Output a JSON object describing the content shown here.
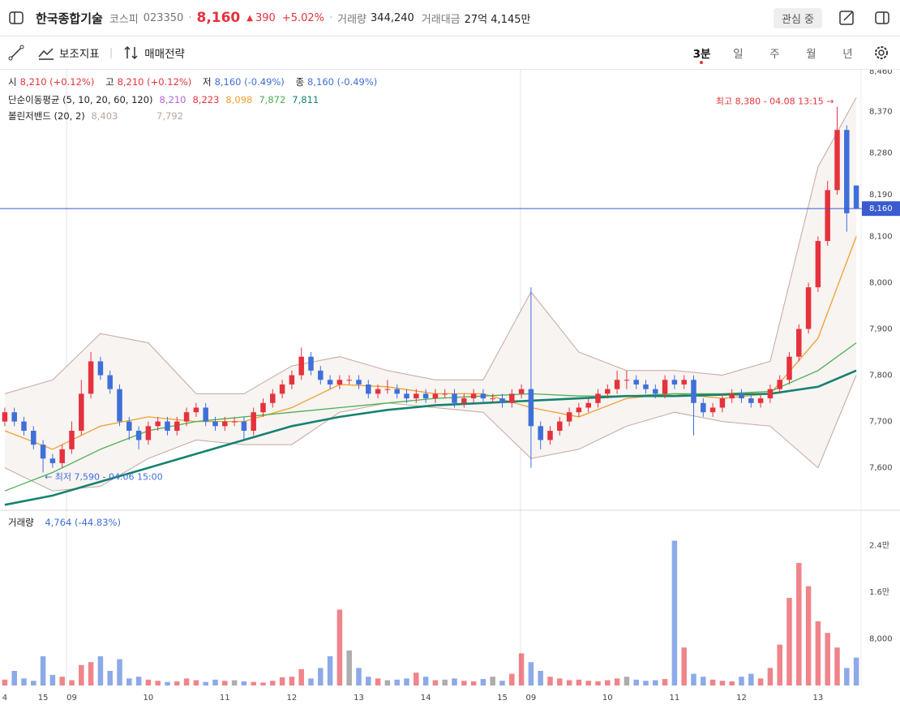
{
  "header": {
    "name": "한국종합기술",
    "market": "코스피",
    "code": "023350",
    "price": "8,160",
    "change": "390",
    "change_pct": "+5.02%",
    "volume_label": "거래량",
    "volume": "344,240",
    "amount_label": "거래대금",
    "amount": "27억 4,145만",
    "watch": "관심 중"
  },
  "toolbar": {
    "indicators": "보조지표",
    "strategy": "매매전략",
    "intervals": [
      "3분",
      "일",
      "주",
      "월",
      "년"
    ]
  },
  "legend": {
    "open_label": "시",
    "open": "8,210 (+0.12%)",
    "high_label": "고",
    "high": "8,210 (+0.12%)",
    "low_label": "저",
    "low": "8,160 (-0.49%)",
    "close_label": "종",
    "close": "8,160 (-0.49%)",
    "ma_label": "단순이동평균 (5, 10, 20, 60, 120)",
    "ma_values": [
      {
        "text": "8,210",
        "color": "#b063d8"
      },
      {
        "text": "8,223",
        "color": "#e5323c"
      },
      {
        "text": "8,098",
        "color": "#f0a030"
      },
      {
        "text": "7,872",
        "color": "#4caf50"
      },
      {
        "text": "7,811",
        "color": "#16826f"
      }
    ],
    "bb_label": "볼린저밴드 (20, 2)",
    "bb_values": [
      "8,403",
      "7,792"
    ]
  },
  "chart_data": [
    {
      "type": "candlestick",
      "up_color": "#e5323c",
      "down_color": "#3f6fd8",
      "categories": [
        "4",
        null,
        null,
        null,
        "15",
        null,
        null,
        "09",
        null,
        null,
        null,
        null,
        null,
        null,
        null,
        "10",
        null,
        null,
        null,
        null,
        null,
        null,
        null,
        "11",
        null,
        null,
        null,
        null,
        null,
        null,
        "12",
        null,
        null,
        null,
        null,
        null,
        null,
        "13",
        null,
        null,
        null,
        null,
        null,
        null,
        "14",
        null,
        null,
        null,
        null,
        null,
        null,
        null,
        "15",
        null,
        null,
        "09",
        null,
        null,
        null,
        null,
        null,
        null,
        null,
        "10",
        null,
        null,
        null,
        null,
        null,
        null,
        "11",
        null,
        null,
        null,
        null,
        null,
        null,
        "12",
        null,
        null,
        null,
        null,
        null,
        null,
        null,
        "13",
        null,
        null,
        null,
        null
      ],
      "ohlc": [
        [
          7700,
          7730,
          7690,
          7720
        ],
        [
          7720,
          7730,
          7690,
          7700
        ],
        [
          7700,
          7710,
          7670,
          7680
        ],
        [
          7680,
          7690,
          7640,
          7650
        ],
        [
          7650,
          7660,
          7590,
          7620
        ],
        [
          7620,
          7630,
          7600,
          7610
        ],
        [
          7610,
          7650,
          7600,
          7640
        ],
        [
          7640,
          7700,
          7630,
          7680
        ],
        [
          7680,
          7790,
          7670,
          7760
        ],
        [
          7760,
          7850,
          7750,
          7830
        ],
        [
          7830,
          7840,
          7790,
          7800
        ],
        [
          7800,
          7810,
          7760,
          7770
        ],
        [
          7770,
          7780,
          7690,
          7700
        ],
        [
          7700,
          7710,
          7660,
          7680
        ],
        [
          7680,
          7690,
          7640,
          7660
        ],
        [
          7660,
          7700,
          7650,
          7690
        ],
        [
          7690,
          7710,
          7680,
          7700
        ],
        [
          7700,
          7710,
          7670,
          7680
        ],
        [
          7680,
          7710,
          7670,
          7700
        ],
        [
          7700,
          7730,
          7690,
          7720
        ],
        [
          7720,
          7740,
          7710,
          7730
        ],
        [
          7730,
          7740,
          7690,
          7700
        ],
        [
          7700,
          7710,
          7680,
          7690
        ],
        [
          7690,
          7710,
          7680,
          7700
        ],
        [
          7700,
          7710,
          7690,
          7700
        ],
        [
          7700,
          7710,
          7660,
          7680
        ],
        [
          7680,
          7730,
          7670,
          7720
        ],
        [
          7720,
          7750,
          7710,
          7740
        ],
        [
          7740,
          7770,
          7730,
          7760
        ],
        [
          7760,
          7790,
          7750,
          7780
        ],
        [
          7780,
          7810,
          7770,
          7800
        ],
        [
          7800,
          7860,
          7790,
          7840
        ],
        [
          7840,
          7850,
          7800,
          7810
        ],
        [
          7810,
          7820,
          7780,
          7790
        ],
        [
          7790,
          7800,
          7770,
          7780
        ],
        [
          7780,
          7800,
          7770,
          7790
        ],
        [
          7790,
          7800,
          7780,
          7790
        ],
        [
          7790,
          7800,
          7770,
          7780
        ],
        [
          7780,
          7790,
          7750,
          7760
        ],
        [
          7760,
          7780,
          7750,
          7770
        ],
        [
          7770,
          7790,
          7760,
          7770
        ],
        [
          7770,
          7780,
          7750,
          7760
        ],
        [
          7760,
          7770,
          7740,
          7750
        ],
        [
          7750,
          7770,
          7740,
          7760
        ],
        [
          7760,
          7770,
          7740,
          7750
        ],
        [
          7750,
          7770,
          7740,
          7760
        ],
        [
          7760,
          7770,
          7750,
          7760
        ],
        [
          7760,
          7770,
          7730,
          7740
        ],
        [
          7740,
          7760,
          7730,
          7750
        ],
        [
          7750,
          7770,
          7740,
          7760
        ],
        [
          7760,
          7770,
          7740,
          7750
        ],
        [
          7750,
          7760,
          7740,
          7750
        ],
        [
          7750,
          7760,
          7730,
          7740
        ],
        [
          7740,
          7770,
          7730,
          7760
        ],
        [
          7760,
          7780,
          7750,
          7770
        ],
        [
          7770,
          7990,
          7600,
          7690
        ],
        [
          7690,
          7700,
          7640,
          7660
        ],
        [
          7660,
          7690,
          7650,
          7680
        ],
        [
          7680,
          7710,
          7670,
          7700
        ],
        [
          7700,
          7730,
          7690,
          7720
        ],
        [
          7720,
          7740,
          7710,
          7730
        ],
        [
          7730,
          7750,
          7720,
          7740
        ],
        [
          7740,
          7770,
          7730,
          7760
        ],
        [
          7760,
          7780,
          7750,
          7770
        ],
        [
          7770,
          7810,
          7760,
          7790
        ],
        [
          7790,
          7810,
          7770,
          7790
        ],
        [
          7790,
          7800,
          7770,
          7780
        ],
        [
          7780,
          7790,
          7760,
          7770
        ],
        [
          7770,
          7780,
          7750,
          7760
        ],
        [
          7760,
          7800,
          7750,
          7790
        ],
        [
          7790,
          7800,
          7770,
          7780
        ],
        [
          7780,
          7800,
          7770,
          7790
        ],
        [
          7790,
          7800,
          7670,
          7740
        ],
        [
          7740,
          7750,
          7710,
          7720
        ],
        [
          7720,
          7740,
          7710,
          7730
        ],
        [
          7730,
          7760,
          7720,
          7750
        ],
        [
          7750,
          7770,
          7740,
          7760
        ],
        [
          7760,
          7770,
          7740,
          7750
        ],
        [
          7750,
          7760,
          7730,
          7740
        ],
        [
          7740,
          7760,
          7730,
          7750
        ],
        [
          7750,
          7780,
          7740,
          7770
        ],
        [
          7770,
          7800,
          7760,
          7790
        ],
        [
          7790,
          7850,
          7780,
          7840
        ],
        [
          7840,
          7910,
          7830,
          7900
        ],
        [
          7900,
          8000,
          7890,
          7990
        ],
        [
          7990,
          8100,
          7980,
          8090
        ],
        [
          8090,
          8220,
          8080,
          8200
        ],
        [
          8200,
          8380,
          8190,
          8330
        ],
        [
          8330,
          8340,
          8110,
          8150
        ],
        [
          8210,
          8210,
          8160,
          8160
        ]
      ],
      "overlays": [
        {
          "color": "#f0a030",
          "x": [
            0,
            5,
            10,
            15,
            20,
            25,
            30,
            35,
            40,
            45,
            50,
            55,
            60,
            65,
            70,
            75,
            80,
            85,
            89
          ],
          "values": [
            7680,
            7640,
            7690,
            7710,
            7700,
            7700,
            7730,
            7780,
            7775,
            7760,
            7760,
            7730,
            7710,
            7750,
            7760,
            7750,
            7760,
            7880,
            8100
          ]
        },
        {
          "color": "#4caf50",
          "x": [
            0,
            5,
            10,
            15,
            20,
            25,
            30,
            35,
            40,
            45,
            50,
            55,
            60,
            65,
            70,
            75,
            80,
            85,
            89
          ],
          "values": [
            7550,
            7590,
            7640,
            7680,
            7700,
            7710,
            7720,
            7730,
            7740,
            7750,
            7755,
            7760,
            7755,
            7755,
            7760,
            7760,
            7765,
            7810,
            7870
          ]
        },
        {
          "color": "#16826f",
          "x": [
            0,
            5,
            10,
            15,
            20,
            25,
            30,
            35,
            40,
            45,
            50,
            55,
            60,
            65,
            70,
            75,
            80,
            85,
            89
          ],
          "values": [
            7520,
            7540,
            7570,
            7600,
            7630,
            7660,
            7690,
            7710,
            7725,
            7735,
            7740,
            7745,
            7750,
            7755,
            7755,
            7758,
            7760,
            7775,
            7810
          ]
        }
      ],
      "bands": {
        "color": "#c3a69e",
        "fill": "#f7f4f2",
        "x": [
          0,
          5,
          10,
          15,
          20,
          25,
          30,
          35,
          40,
          45,
          50,
          55,
          60,
          65,
          70,
          75,
          80,
          85,
          89
        ],
        "upper": [
          7760,
          7790,
          7890,
          7870,
          7760,
          7760,
          7820,
          7840,
          7810,
          7790,
          7790,
          7980,
          7850,
          7810,
          7810,
          7800,
          7830,
          8250,
          8400
        ],
        "lower": [
          7600,
          7550,
          7560,
          7620,
          7660,
          7650,
          7650,
          7720,
          7740,
          7730,
          7720,
          7620,
          7640,
          7690,
          7720,
          7700,
          7690,
          7600,
          7800
        ]
      },
      "ylim": [
        7510,
        8460
      ],
      "yticks": [
        {
          "value": 7600,
          "label": "7,600"
        },
        {
          "value": 7700,
          "label": "7,700"
        },
        {
          "value": 7800,
          "label": "7,800"
        },
        {
          "value": 7900,
          "label": "7,900"
        },
        {
          "value": 8000,
          "label": "8,000"
        },
        {
          "value": 8100,
          "label": "8,100"
        },
        {
          "value": 8190,
          "label": "8,190"
        },
        {
          "value": 8280,
          "label": "8,280"
        },
        {
          "value": 8370,
          "label": "8,370"
        },
        {
          "value": 8460,
          "label": "8,460"
        }
      ],
      "current_price": {
        "value": 8160,
        "label": "8,160",
        "color": "#3b5bd0"
      },
      "annotations": [
        "최고 8,380 - 04.08 13:15 →",
        "← 최저 7,590 - 04.06 15:00"
      ]
    },
    {
      "type": "bar",
      "title": "거래량",
      "value_label": "4,764 (-44.83%)",
      "values": [
        1000,
        2500,
        1200,
        800,
        5000,
        1800,
        1500,
        900,
        3500,
        4000,
        5000,
        2500,
        4500,
        1200,
        1500,
        1000,
        800,
        600,
        700,
        1200,
        900,
        600,
        1000,
        800,
        900,
        700,
        600,
        500,
        800,
        1400,
        1500,
        2800,
        1200,
        3000,
        5000,
        13000,
        6000,
        3000,
        1500,
        1200,
        900,
        1000,
        1200,
        2200,
        1500,
        900,
        1000,
        1200,
        800,
        700,
        1100,
        1500,
        800,
        2000,
        5500,
        4000,
        2500,
        1500,
        1200,
        900,
        1000,
        800,
        700,
        900,
        1200,
        1500,
        1000,
        800,
        900,
        1100,
        24800,
        6500,
        2000,
        1500,
        1000,
        800,
        700,
        1500,
        2000,
        1200,
        3000,
        7000,
        15000,
        21000,
        17000,
        11000,
        9000,
        6500,
        3000,
        4764
      ],
      "flat_color": "#777777",
      "ylim": [
        0,
        29600
      ],
      "yticks": [
        {
          "value": 8000,
          "label": "8,000"
        },
        {
          "value": 16000,
          "label": "1.6만"
        },
        {
          "value": 24000,
          "label": "2.4만"
        }
      ]
    }
  ]
}
